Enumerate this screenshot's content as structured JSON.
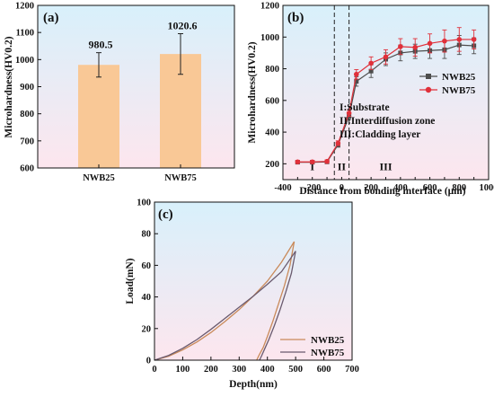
{
  "chart_data": [
    {
      "id": "a",
      "type": "bar",
      "panel_label": "(a)",
      "ylabel": "Microhardness(HV0.2)",
      "ylim": [
        600,
        1200
      ],
      "yticks": [
        600,
        700,
        800,
        900,
        1000,
        1100,
        1200
      ],
      "categories": [
        "NWB25",
        "NWB75"
      ],
      "values": [
        980.5,
        1020.6
      ],
      "errors": [
        45,
        75
      ],
      "data_labels": [
        "980.5",
        "1020.6"
      ],
      "bar_color": "#f9c896"
    },
    {
      "id": "b",
      "type": "line",
      "panel_label": "(b)",
      "xlabel": "Distance from bonding interface (μm)",
      "ylabel": "Microhardness(HV0.2)",
      "xlim": [
        -400,
        1000
      ],
      "ylim": [
        100,
        1200
      ],
      "xticks": [
        -400,
        -300,
        -200,
        -100,
        0,
        100,
        200,
        300,
        400,
        500,
        600,
        700,
        800,
        900,
        1000
      ],
      "yticks": [
        200,
        400,
        600,
        800,
        1000,
        1200
      ],
      "x": [
        -300,
        -200,
        -100,
        -25,
        50,
        100,
        200,
        300,
        400,
        500,
        600,
        700,
        800,
        900
      ],
      "series": [
        {
          "name": "NWB25",
          "color": "#4d4d4d",
          "values": [
            210,
            210,
            212,
            320,
            500,
            720,
            785,
            860,
            900,
            910,
            915,
            920,
            950,
            945
          ],
          "errors": [
            10,
            10,
            10,
            15,
            20,
            30,
            40,
            40,
            50,
            45,
            50,
            55,
            60,
            50
          ]
        },
        {
          "name": "NWB75",
          "color": "#e0303a",
          "values": [
            212,
            212,
            215,
            330,
            520,
            765,
            835,
            875,
            940,
            935,
            960,
            975,
            985,
            985
          ],
          "errors": [
            10,
            10,
            10,
            15,
            20,
            30,
            40,
            45,
            50,
            55,
            60,
            70,
            75,
            60
          ]
        }
      ],
      "boundaries": [
        -50,
        50
      ],
      "region_labels": [
        {
          "text": "I",
          "x": -200
        },
        {
          "text": "II",
          "x": 0
        },
        {
          "text": "III",
          "x": 300
        }
      ],
      "annotations": [
        "I:Substrate",
        "II:Interdiffusion zone",
        "III:Cladding layer"
      ],
      "legend_position": "top-right"
    },
    {
      "id": "c",
      "type": "line",
      "panel_label": "(c)",
      "xlabel": "Depth(nm)",
      "ylabel": "Load(mN)",
      "xlim": [
        0,
        700
      ],
      "ylim": [
        0,
        100
      ],
      "xticks": [
        0,
        100,
        200,
        300,
        400,
        500,
        600,
        700
      ],
      "yticks": [
        0,
        20,
        40,
        60,
        80,
        100
      ],
      "series": [
        {
          "name": "NWB25",
          "color": "#c98a5a",
          "loading": {
            "x": [
              0,
              50,
              100,
              150,
              200,
              250,
              300,
              350,
              400,
              450,
              495
            ],
            "y": [
              0,
              2.5,
              6.5,
              11.5,
              17.5,
              24.5,
              32,
              40.5,
              50,
              62,
              75
            ]
          },
          "unloading": {
            "x": [
              495,
              480,
              460,
              440,
              420,
              400,
              385,
              370,
              362
            ],
            "y": [
              75,
              60,
              47,
              36,
              25,
              15,
              8,
              3,
              0
            ]
          }
        },
        {
          "name": "NWB75",
          "color": "#6a5a6e",
          "loading": {
            "x": [
              0,
              50,
              100,
              150,
              200,
              250,
              300,
              350,
              400,
              450,
              500
            ],
            "y": [
              0,
              3,
              7.5,
              13,
              19.5,
              26.5,
              33.5,
              40.5,
              48,
              56,
              69
            ]
          },
          "unloading": {
            "x": [
              500,
              485,
              465,
              445,
              425,
              405,
              390,
              380,
              372
            ],
            "y": [
              69,
              55,
              43,
              32,
              22,
              13,
              7,
              3,
              0
            ]
          }
        }
      ],
      "legend_position": "bottom-right"
    }
  ]
}
